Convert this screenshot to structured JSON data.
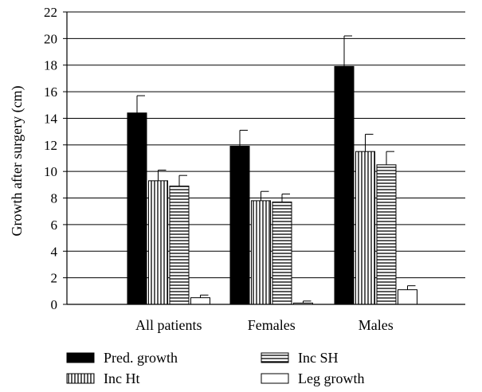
{
  "chart_data": {
    "type": "bar",
    "title": "",
    "xlabel": "",
    "ylabel": "Growth after surgery (cm)",
    "ylim": [
      0,
      22
    ],
    "yticks": [
      0,
      2,
      4,
      6,
      8,
      10,
      12,
      14,
      16,
      18,
      20,
      22
    ],
    "grid": "horizontal",
    "legend_position": "bottom",
    "categories": [
      "All patients",
      "Females",
      "Males"
    ],
    "series": [
      {
        "name": "Pred. growth",
        "pattern": "solid",
        "color": "#000000",
        "values": [
          14.4,
          11.9,
          17.9
        ],
        "errors": [
          1.3,
          1.2,
          2.3
        ]
      },
      {
        "name": "Inc Ht",
        "pattern": "vertical",
        "color": "#000000",
        "values": [
          9.3,
          7.8,
          11.5
        ],
        "errors": [
          0.8,
          0.7,
          1.3
        ]
      },
      {
        "name": "Inc SH",
        "pattern": "horizontal",
        "color": "#000000",
        "values": [
          8.9,
          7.7,
          10.5
        ],
        "errors": [
          0.8,
          0.6,
          1.0
        ]
      },
      {
        "name": "Leg growth",
        "pattern": "empty",
        "color": "#000000",
        "values": [
          0.5,
          0.1,
          1.1
        ],
        "errors": [
          0.2,
          0.15,
          0.3
        ]
      }
    ]
  }
}
